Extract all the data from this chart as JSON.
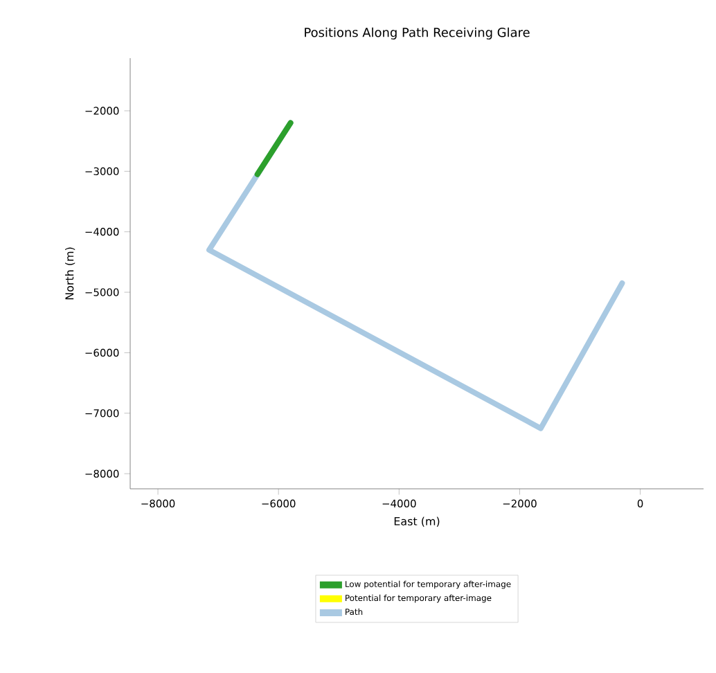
{
  "chart_data": {
    "type": "line",
    "title": "Positions Along Path Receiving Glare",
    "xlabel": "East (m)",
    "ylabel": "North (m)",
    "xlim": [
      -8460,
      1050
    ],
    "ylim": [
      -8250,
      -1130
    ],
    "xticks": [
      {
        "value": -8000,
        "label": "−8000"
      },
      {
        "value": -6000,
        "label": "−6000"
      },
      {
        "value": -4000,
        "label": "−4000"
      },
      {
        "value": -2000,
        "label": "−2000"
      },
      0
    ],
    "yticks": [
      {
        "value": -8000,
        "label": "−8000"
      },
      {
        "value": -7000,
        "label": "−7000"
      },
      {
        "value": -6000,
        "label": "−6000"
      },
      {
        "value": -5000,
        "label": "−5000"
      },
      {
        "value": -4000,
        "label": "−4000"
      },
      {
        "value": -3000,
        "label": "−3000"
      },
      {
        "value": -2000,
        "label": "−2000"
      }
    ],
    "legend": "bottom",
    "grid": false,
    "marker": "none",
    "line_style": "solid",
    "series": [
      {
        "name": "Low potential for temporary after-image",
        "color": "#2ca02c",
        "x": [
          -6350,
          -5800
        ],
        "values": [
          -3050,
          -2200
        ]
      },
      {
        "name": "Potential for temporary after-image",
        "color": "#ffff00"
      },
      {
        "name": "Path",
        "color": "#a9c9e2",
        "x": [
          -5800,
          -7150,
          -1650,
          -300
        ],
        "values": [
          -2200,
          -4300,
          -7250,
          -4850
        ]
      }
    ]
  }
}
